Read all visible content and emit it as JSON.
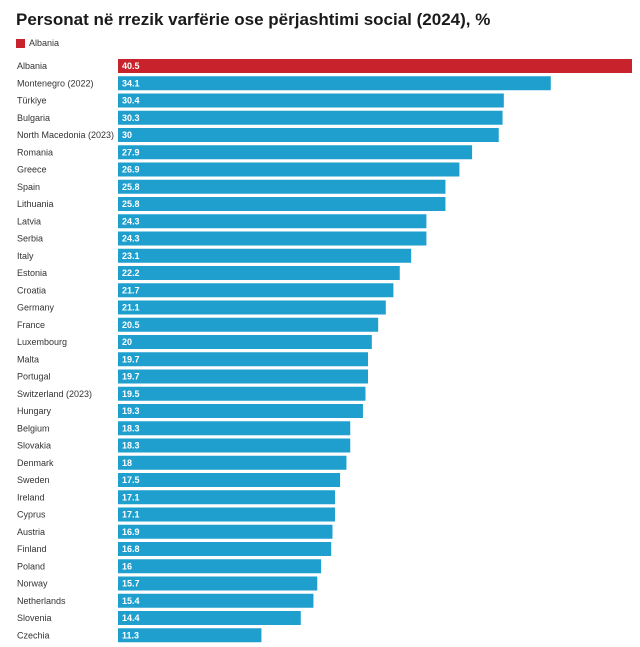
{
  "chart_data": {
    "type": "bar",
    "orientation": "horizontal",
    "title": "Personat në rrezik varfërie ose përjashtimi social (2024), %",
    "legend": [
      {
        "name": "Albania",
        "color": "#c8232c"
      }
    ],
    "colors": {
      "highlight": "#c8232c",
      "default": "#1f9fce"
    },
    "xlim": [
      0,
      40.5
    ],
    "categories": [
      "Albania",
      "Montenegro (2022)",
      "Türkiye",
      "Bulgaria",
      "North Macedonia (2023)",
      "Romania",
      "Greece",
      "Spain",
      "Lithuania",
      "Latvia",
      "Serbia",
      "Italy",
      "Estonia",
      "Croatia",
      "Germany",
      "France",
      "Luxembourg",
      "Malta",
      "Portugal",
      "Switzerland (2023)",
      "Hungary",
      "Belgium",
      "Slovakia",
      "Denmark",
      "Sweden",
      "Ireland",
      "Cyprus",
      "Austria",
      "Finland",
      "Poland",
      "Norway",
      "Netherlands",
      "Slovenia",
      "Czechia"
    ],
    "values": [
      40.5,
      34.1,
      30.4,
      30.3,
      30,
      27.9,
      26.9,
      25.8,
      25.8,
      24.3,
      24.3,
      23.1,
      22.2,
      21.7,
      21.1,
      20.5,
      20,
      19.7,
      19.7,
      19.5,
      19.3,
      18.3,
      18.3,
      18,
      17.5,
      17.1,
      17.1,
      16.9,
      16.8,
      16,
      15.7,
      15.4,
      14.4,
      11.3
    ],
    "highlight": [
      "Albania"
    ]
  }
}
